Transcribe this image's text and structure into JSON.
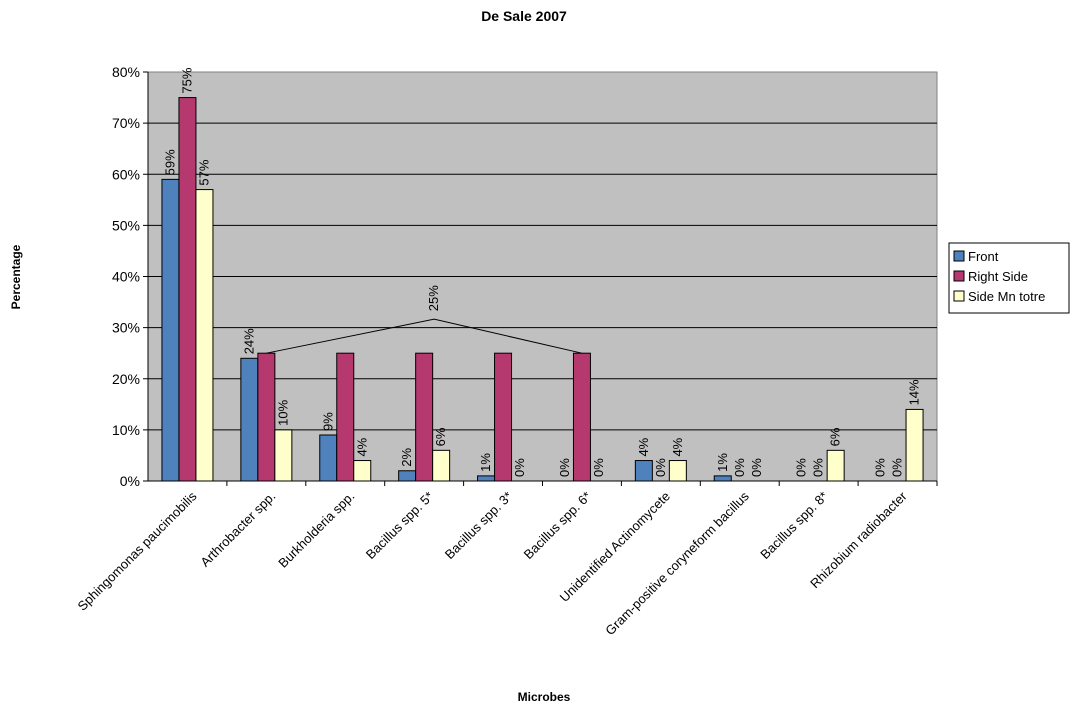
{
  "chart_data": {
    "type": "bar",
    "title": "De Sale 2007",
    "xlabel": "Microbes",
    "ylabel": "Percentage",
    "ylim": [
      0,
      80
    ],
    "y_ticks": [
      "0%",
      "10%",
      "20%",
      "30%",
      "40%",
      "50%",
      "60%",
      "70%",
      "80%"
    ],
    "grid": true,
    "legend_position": "right",
    "categories": [
      "Sphingomonas paucimobilis",
      "Arthrobacter spp.",
      "Burkholderia spp.",
      "Bacillus spp. 5*",
      "Bacillus spp. 3*",
      "Bacillus spp. 6*",
      "Unidentified Actinomycete",
      "Gram-positive coryneform bacillus",
      "Bacillus spp. 8*",
      "Rhizobium radiobacter"
    ],
    "series": [
      {
        "name": "Front",
        "color": "#4f81bd",
        "values": [
          59,
          24,
          9,
          2,
          1,
          0,
          4,
          1,
          0,
          0
        ],
        "labels": [
          "59%",
          "24%",
          "9%",
          "2%",
          "1%",
          "0%",
          "4%",
          "1%",
          "0%",
          "0%"
        ]
      },
      {
        "name": "Right Side",
        "color": "#b5386f",
        "values": [
          75,
          25,
          25,
          25,
          25,
          25,
          0,
          0,
          0,
          0
        ],
        "labels": [
          "75%",
          "",
          "",
          "",
          "",
          "",
          "0%",
          "0%",
          "0%",
          "0%"
        ]
      },
      {
        "name": "Side Mn totre",
        "color": "#ffffcc",
        "values": [
          57,
          10,
          4,
          6,
          0,
          0,
          4,
          0,
          6,
          14
        ],
        "labels": [
          "57%",
          "10%",
          "4%",
          "6%",
          "0%",
          "0%",
          "4%",
          "0%",
          "6%",
          "14%"
        ]
      }
    ],
    "annotation": {
      "text": "25%",
      "points_to_category_indices": [
        1,
        5
      ],
      "series": "Right Side"
    },
    "plot_background": "#c0c0c0"
  }
}
